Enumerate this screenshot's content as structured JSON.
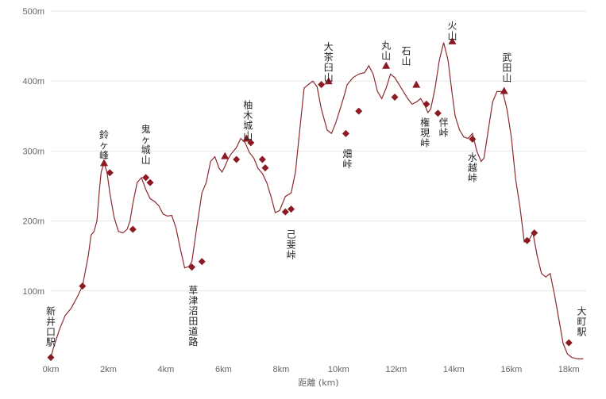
{
  "chart_data": {
    "type": "line",
    "title": "",
    "xlabel": "距離 (km)",
    "ylabel": "",
    "xlim": [
      0,
      18.6
    ],
    "ylim": [
      0,
      500
    ],
    "grid": true,
    "x_ticks": [
      {
        "value": 0,
        "label": "0km"
      },
      {
        "value": 2,
        "label": "2km"
      },
      {
        "value": 4,
        "label": "4km"
      },
      {
        "value": 6,
        "label": "6km"
      },
      {
        "value": 8,
        "label": "8km"
      },
      {
        "value": 10,
        "label": "10km"
      },
      {
        "value": 12,
        "label": "12km"
      },
      {
        "value": 14,
        "label": "14km"
      },
      {
        "value": 16,
        "label": "16km"
      },
      {
        "value": 18,
        "label": "18km"
      }
    ],
    "y_ticks": [
      {
        "value": 100,
        "label": "100m"
      },
      {
        "value": 200,
        "label": "200m"
      },
      {
        "value": 300,
        "label": "300m"
      },
      {
        "value": 400,
        "label": "400m"
      },
      {
        "value": 500,
        "label": "500m"
      }
    ],
    "line_color": "#8b2a2f",
    "marker_color": "#8b1a22",
    "profile": {
      "x": [
        0,
        0.1,
        0.3,
        0.5,
        0.7,
        0.9,
        1.1,
        1.3,
        1.4,
        1.5,
        1.6,
        1.7,
        1.75,
        1.85,
        1.95,
        2.05,
        2.2,
        2.35,
        2.5,
        2.65,
        2.75,
        2.85,
        3.0,
        3.15,
        3.3,
        3.45,
        3.6,
        3.75,
        3.9,
        4.05,
        4.2,
        4.35,
        4.5,
        4.65,
        4.8,
        4.9,
        5.05,
        5.25,
        5.4,
        5.55,
        5.7,
        5.85,
        5.95,
        6.05,
        6.15,
        6.25,
        6.45,
        6.6,
        6.75,
        6.9,
        7.05,
        7.2,
        7.35,
        7.5,
        7.65,
        7.8,
        7.95,
        8.05,
        8.15,
        8.35,
        8.5,
        8.65,
        8.8,
        8.95,
        9.1,
        9.25,
        9.4,
        9.6,
        9.75,
        9.9,
        10.05,
        10.2,
        10.3,
        10.5,
        10.7,
        10.9,
        11.05,
        11.2,
        11.35,
        11.5,
        11.65,
        11.8,
        11.95,
        12.1,
        12.25,
        12.4,
        12.55,
        12.7,
        12.85,
        13.0,
        13.1,
        13.2,
        13.35,
        13.5,
        13.65,
        13.8,
        13.95,
        14.05,
        14.2,
        14.35,
        14.5,
        14.65,
        14.8,
        14.95,
        15.05,
        15.2,
        15.35,
        15.5,
        15.7,
        15.85,
        16.0,
        16.15,
        16.3,
        16.45,
        16.6,
        16.75,
        16.9,
        17.05,
        17.2,
        17.35,
        17.5,
        17.65,
        17.8,
        17.95,
        18.1,
        18.3,
        18.5
      ],
      "y": [
        5,
        20,
        45,
        65,
        75,
        90,
        107,
        150,
        180,
        185,
        200,
        250,
        270,
        283,
        270,
        240,
        205,
        185,
        183,
        188,
        200,
        225,
        255,
        262,
        245,
        232,
        228,
        222,
        210,
        207,
        208,
        190,
        160,
        133,
        135,
        142,
        185,
        240,
        255,
        285,
        292,
        275,
        270,
        278,
        288,
        295,
        305,
        318,
        312,
        298,
        290,
        275,
        268,
        255,
        235,
        212,
        215,
        225,
        235,
        240,
        270,
        330,
        390,
        395,
        400,
        392,
        360,
        330,
        325,
        340,
        360,
        380,
        395,
        405,
        410,
        412,
        422,
        410,
        385,
        375,
        390,
        410,
        405,
        395,
        385,
        375,
        367,
        370,
        375,
        365,
        355,
        360,
        390,
        430,
        455,
        430,
        380,
        350,
        330,
        320,
        318,
        325,
        300,
        285,
        290,
        330,
        370,
        385,
        385,
        360,
        320,
        260,
        220,
        170,
        172,
        183,
        150,
        125,
        120,
        125,
        95,
        60,
        25,
        10,
        5,
        3,
        3
      ]
    },
    "waypoints": [
      {
        "name": "新井口駅",
        "x": 0.0,
        "y": 5,
        "marker": "diamond"
      },
      {
        "name": "",
        "x": 1.1,
        "y": 107,
        "marker": "diamond"
      },
      {
        "name": "鈴ヶ峰",
        "x": 1.85,
        "y": 283,
        "marker": "triangle"
      },
      {
        "name": "",
        "x": 2.05,
        "y": 269,
        "marker": "diamond"
      },
      {
        "name": "",
        "x": 2.85,
        "y": 188,
        "marker": "diamond"
      },
      {
        "name": "鬼ヶ城山",
        "x": 3.3,
        "y": 262,
        "marker": "diamond"
      },
      {
        "name": "",
        "x": 3.45,
        "y": 255,
        "marker": "diamond"
      },
      {
        "name": "草津沼田道路",
        "x": 4.9,
        "y": 134,
        "marker": "diamond"
      },
      {
        "name": "",
        "x": 5.25,
        "y": 142,
        "marker": "diamond"
      },
      {
        "name": "",
        "x": 6.05,
        "y": 293,
        "marker": "triangle"
      },
      {
        "name": "",
        "x": 6.45,
        "y": 288,
        "marker": "diamond"
      },
      {
        "name": "柚木城山",
        "x": 6.8,
        "y": 318,
        "marker": "triangle"
      },
      {
        "name": "",
        "x": 6.95,
        "y": 312,
        "marker": "diamond"
      },
      {
        "name": "",
        "x": 7.35,
        "y": 288,
        "marker": "diamond"
      },
      {
        "name": "",
        "x": 7.45,
        "y": 276,
        "marker": "diamond"
      },
      {
        "name": "己斐峠",
        "x": 8.15,
        "y": 213,
        "marker": "diamond"
      },
      {
        "name": "",
        "x": 8.35,
        "y": 217,
        "marker": "diamond"
      },
      {
        "name": "大茶臼山",
        "x": 9.4,
        "y": 395,
        "marker": "diamond"
      },
      {
        "name": "",
        "x": 9.65,
        "y": 400,
        "marker": "triangle"
      },
      {
        "name": "畑峠",
        "x": 10.25,
        "y": 325,
        "marker": "diamond"
      },
      {
        "name": "",
        "x": 10.7,
        "y": 357,
        "marker": "diamond"
      },
      {
        "name": "丸山",
        "x": 11.65,
        "y": 422,
        "marker": "triangle"
      },
      {
        "name": "",
        "x": 11.95,
        "y": 377,
        "marker": "diamond"
      },
      {
        "name": "石山",
        "x": 12.7,
        "y": 395,
        "marker": "triangle"
      },
      {
        "name": "権現峠",
        "x": 13.05,
        "y": 367,
        "marker": "diamond"
      },
      {
        "name": "伴峠",
        "x": 13.45,
        "y": 354,
        "marker": "diamond"
      },
      {
        "name": "火山",
        "x": 13.95,
        "y": 457,
        "marker": "triangle"
      },
      {
        "name": "水越峠",
        "x": 14.65,
        "y": 317,
        "marker": "diamond"
      },
      {
        "name": "武田山",
        "x": 15.75,
        "y": 386,
        "marker": "triangle"
      },
      {
        "name": "",
        "x": 16.55,
        "y": 172,
        "marker": "diamond"
      },
      {
        "name": "",
        "x": 16.8,
        "y": 183,
        "marker": "diamond"
      },
      {
        "name": "大町駅",
        "x": 18.0,
        "y": 26,
        "marker": "diamond"
      }
    ],
    "labels": [
      {
        "text": "新井口駅",
        "x": 0.0,
        "y": 80
      },
      {
        "text": "鈴ヶ峰",
        "x": 1.85,
        "y": 332
      },
      {
        "text": "鬼ヶ城山",
        "x": 3.3,
        "y": 340
      },
      {
        "text": "草津沼田道路",
        "x": 4.95,
        "y": 110
      },
      {
        "text": "柚木城山",
        "x": 6.85,
        "y": 375
      },
      {
        "text": "己斐峠",
        "x": 8.35,
        "y": 190
      },
      {
        "text": "大茶臼山",
        "x": 9.65,
        "y": 458
      },
      {
        "text": "畑峠",
        "x": 10.3,
        "y": 305
      },
      {
        "text": "丸山",
        "x": 11.65,
        "y": 460
      },
      {
        "text": "石山",
        "x": 12.35,
        "y": 452
      },
      {
        "text": "権現峠",
        "x": 13.0,
        "y": 350
      },
      {
        "text": "伴峠",
        "x": 13.65,
        "y": 350
      },
      {
        "text": "火山",
        "x": 13.95,
        "y": 488
      },
      {
        "text": "水越峠",
        "x": 14.65,
        "y": 300
      },
      {
        "text": "武田山",
        "x": 15.85,
        "y": 443
      },
      {
        "text": "大町駅",
        "x": 18.45,
        "y": 80
      }
    ]
  }
}
